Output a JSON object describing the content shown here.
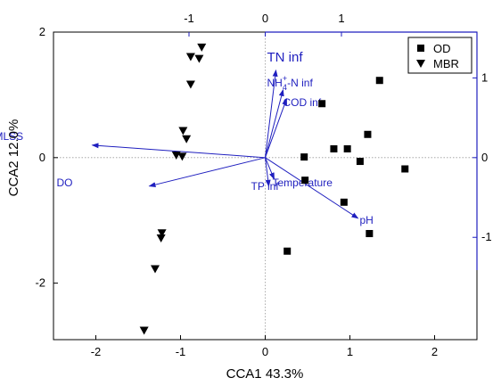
{
  "chart_data": {
    "type": "scatter",
    "xlabel": "CCA1 43.3%",
    "ylabel": "CCA2 12.0%",
    "xlim": [
      -2.5,
      2.5
    ],
    "ylim": [
      -2.9,
      2.0
    ],
    "x_ticks": [
      -2,
      -1,
      0,
      1,
      2
    ],
    "y_ticks": [
      -2,
      0,
      2
    ],
    "top_axis": {
      "range": [
        -1,
        1.4
      ],
      "ticks": [
        -1,
        0,
        1
      ],
      "color": "#1f1fbf"
    },
    "right_axis": {
      "range": [
        -1.7,
        1.08
      ],
      "ticks": [
        -1,
        0,
        1
      ],
      "color": "#1f1fbf",
      "tick_labels": [
        "-1",
        "0",
        "1"
      ]
    },
    "reference_lines": {
      "x": 0,
      "y": 0,
      "style": "dotted"
    },
    "legend": {
      "placement": "top-right",
      "entries": [
        "OD",
        "MBR"
      ]
    },
    "series": [
      {
        "name": "OD",
        "marker": "square",
        "color": "#000000",
        "points": [
          {
            "x": 1.35,
            "y": 1.23
          },
          {
            "x": 0.67,
            "y": 0.86
          },
          {
            "x": 1.21,
            "y": 0.37
          },
          {
            "x": 0.81,
            "y": 0.14
          },
          {
            "x": 0.97,
            "y": 0.14
          },
          {
            "x": 1.12,
            "y": -0.06
          },
          {
            "x": 1.65,
            "y": -0.18
          },
          {
            "x": 0.46,
            "y": 0.01
          },
          {
            "x": 0.47,
            "y": -0.36
          },
          {
            "x": 0.93,
            "y": -0.71
          },
          {
            "x": 1.23,
            "y": -1.21
          },
          {
            "x": 0.26,
            "y": -1.49
          }
        ]
      },
      {
        "name": "MBR",
        "marker": "triangle-down",
        "color": "#000000",
        "points": [
          {
            "x": -0.75,
            "y": 1.76
          },
          {
            "x": -0.88,
            "y": 1.61
          },
          {
            "x": -0.78,
            "y": 1.58
          },
          {
            "x": -0.88,
            "y": 1.17
          },
          {
            "x": -0.97,
            "y": 0.43
          },
          {
            "x": -0.93,
            "y": 0.3
          },
          {
            "x": -1.05,
            "y": 0.04
          },
          {
            "x": -0.98,
            "y": 0.02
          },
          {
            "x": -1.22,
            "y": -1.2
          },
          {
            "x": -1.23,
            "y": -1.28
          },
          {
            "x": -1.3,
            "y": -1.77
          },
          {
            "x": -1.43,
            "y": -2.75
          }
        ]
      }
    ],
    "vectors": [
      {
        "label": "MLSS",
        "x": -0.97,
        "y": 0.07,
        "color": "#1f1fbf"
      },
      {
        "label": "DO",
        "x": -0.65,
        "y": -0.16,
        "color": "#1f1fbf"
      },
      {
        "label": "TN inf",
        "x": 0.06,
        "y": 0.49,
        "color": "#1f1fbf"
      },
      {
        "label": "COD inf",
        "x": 0.12,
        "y": 0.33,
        "color": "#1f1fbf"
      },
      {
        "label": "TP inf",
        "x": 0.02,
        "y": -0.16,
        "color": "#1f1fbf"
      },
      {
        "label": "Temperature",
        "x": 0.05,
        "y": -0.12,
        "color": "#1f1fbf"
      },
      {
        "label": "pH",
        "x": 0.52,
        "y": -0.34,
        "color": "#1f1fbf"
      },
      {
        "label_parts": [
          "NH",
          "4",
          "+",
          "-N inf"
        ],
        "x": 0.1,
        "y": 0.38,
        "color": "#1f1fbf"
      }
    ]
  }
}
